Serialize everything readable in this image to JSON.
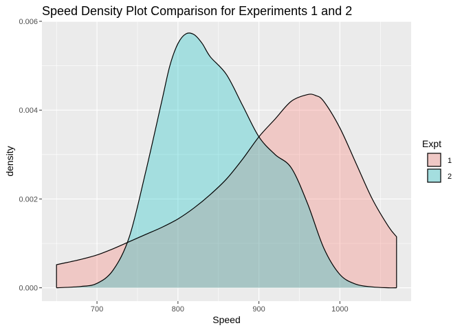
{
  "chart_data": {
    "type": "area",
    "title": "Speed Density Plot Comparison for Experiments 1 and 2",
    "xlabel": "Speed",
    "ylabel": "density",
    "xlim": [
      632,
      1088
    ],
    "ylim": [
      -0.0003,
      0.006
    ],
    "x_ticks": [
      {
        "value": 700,
        "label": "700"
      },
      {
        "value": 800,
        "label": "800"
      },
      {
        "value": 900,
        "label": "900"
      },
      {
        "value": 1000,
        "label": "1000"
      }
    ],
    "y_ticks": [
      {
        "value": 0,
        "label": "0.000"
      },
      {
        "value": 0.002,
        "label": "0.002"
      },
      {
        "value": 0.004,
        "label": "0.004"
      },
      {
        "value": 0.006,
        "label": "0.006"
      }
    ],
    "grid": true,
    "legend": {
      "title": "Expt",
      "placement": "right",
      "entries": [
        {
          "label": "1",
          "color": "#F8766D"
        },
        {
          "label": "2",
          "color": "#00BFC4"
        }
      ]
    },
    "series": [
      {
        "name": "1",
        "color": "#F8766D",
        "x": [
          650,
          680,
          700,
          720,
          740,
          760,
          780,
          800,
          820,
          840,
          860,
          880,
          900,
          920,
          940,
          960,
          970,
          980,
          1000,
          1020,
          1040,
          1060,
          1070
        ],
        "y": [
          0.00052,
          0.00064,
          0.00074,
          0.00088,
          0.00104,
          0.0012,
          0.00136,
          0.00155,
          0.0018,
          0.0021,
          0.00245,
          0.0029,
          0.0034,
          0.0038,
          0.0042,
          0.00435,
          0.00433,
          0.0042,
          0.0036,
          0.0028,
          0.002,
          0.00138,
          0.00115
        ]
      },
      {
        "name": "2",
        "color": "#00BFC4",
        "x": [
          650,
          680,
          700,
          720,
          740,
          760,
          780,
          790,
          800,
          810,
          820,
          830,
          840,
          860,
          880,
          900,
          920,
          940,
          960,
          980,
          1000,
          1020,
          1040,
          1060,
          1070
        ],
        "y": [
          0.0,
          3e-05,
          0.0001,
          0.0004,
          0.00115,
          0.0026,
          0.0042,
          0.005,
          0.0055,
          0.00572,
          0.0057,
          0.0055,
          0.0052,
          0.0048,
          0.0041,
          0.0034,
          0.003,
          0.0027,
          0.0019,
          0.0009,
          0.0003,
          8e-05,
          2e-05,
          0.0,
          0.0
        ]
      }
    ]
  }
}
